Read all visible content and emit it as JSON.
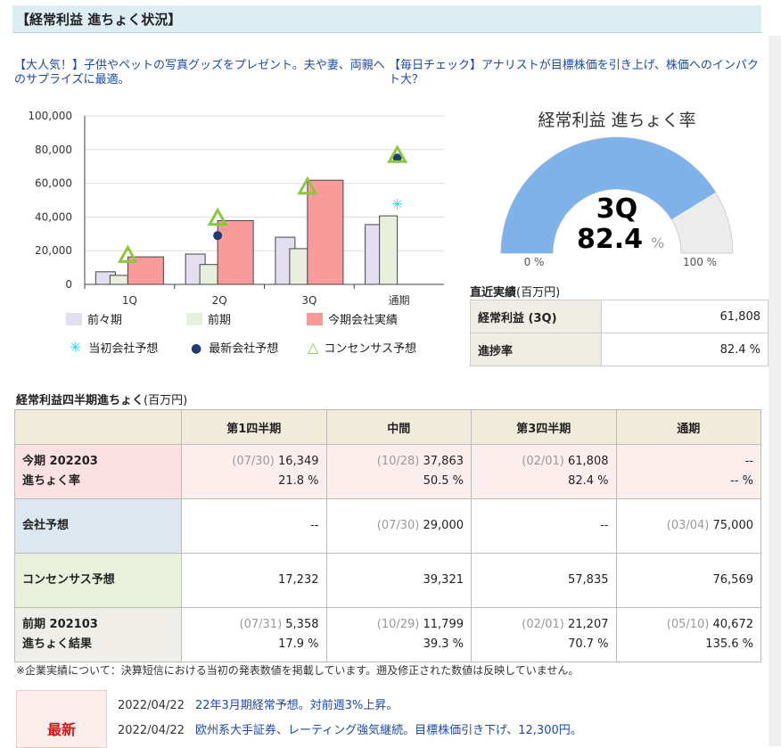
{
  "header": {
    "title": "【経常利益 進ちょく状況】"
  },
  "ads": [
    {
      "text": "【大人気！】子供やペットの写真グッズをプレゼント。夫や妻、両親へのサプライズに最適。"
    },
    {
      "text": "【毎日チェック】アナリストが目標株価を引き上げ、株価へのインパクト大？"
    }
  ],
  "chart_data": {
    "type": "bar",
    "categories": [
      "1Q",
      "2Q",
      "3Q",
      "通期"
    ],
    "ylim": [
      0,
      100000
    ],
    "yticks": [
      "100,000",
      "80,000",
      "60,000",
      "40,000",
      "20,000",
      "0"
    ],
    "series": [
      {
        "name": "前々期",
        "color": "#e4dff0",
        "values": [
          7500,
          18000,
          28000,
          35500
        ]
      },
      {
        "name": "前期",
        "color": "#e9efdd",
        "values": [
          5358,
          11799,
          21207,
          40672
        ]
      },
      {
        "name": "今期会社実績",
        "color": "#fa9b9b",
        "values": [
          16349,
          37863,
          61808,
          null
        ]
      }
    ],
    "markers": [
      {
        "name": "当初会社予想",
        "symbol": "asterisk",
        "color": "#2cd3e6",
        "values": [
          null,
          null,
          null,
          48000
        ]
      },
      {
        "name": "最新会社予想",
        "symbol": "dot",
        "color": "#1f3b70",
        "values": [
          null,
          29000,
          null,
          75000
        ]
      },
      {
        "name": "コンセンサス予想",
        "symbol": "triangle",
        "color": "#8cc63f",
        "values": [
          17232,
          39321,
          57835,
          76569
        ]
      }
    ]
  },
  "gauge": {
    "title": "経常利益 進ちょく率",
    "quarter": "3Q",
    "value": 82.4,
    "value_text": "82.4",
    "unit": "%",
    "min_label": "0 %",
    "max_label": "100 %",
    "fill_color": "#7fb2e8"
  },
  "recent": {
    "title": "直近実績",
    "unit": "(百万円)",
    "rows": [
      {
        "label": "経常利益 (3Q)",
        "value": "61,808"
      },
      {
        "label": "進捗率",
        "value": "82.4 %"
      }
    ]
  },
  "quarter_table": {
    "title": "経常利益四半期進ちょく",
    "unit": "(百万円)",
    "columns": [
      "",
      "第1四半期",
      "中間",
      "第3四半期",
      "通期"
    ],
    "rows": [
      {
        "h1": "今期 202203",
        "h2": "進ちょく率",
        "cells": [
          {
            "d": "(07/30)",
            "v": "16,349",
            "p": "21.8 %"
          },
          {
            "d": "(10/28)",
            "v": "37,863",
            "p": "50.5 %"
          },
          {
            "d": "(02/01)",
            "v": "61,808",
            "p": "82.4 %"
          },
          {
            "d": "",
            "v": "--",
            "p": "-- %"
          }
        ]
      },
      {
        "h1": "会社予想",
        "h2": "",
        "cells": [
          {
            "d": "",
            "v": "--",
            "p": ""
          },
          {
            "d": "(07/30)",
            "v": "29,000",
            "p": ""
          },
          {
            "d": "",
            "v": "--",
            "p": ""
          },
          {
            "d": "(03/04)",
            "v": "75,000",
            "p": ""
          }
        ]
      },
      {
        "h1": "コンセンサス予想",
        "h2": "",
        "cells": [
          {
            "d": "",
            "v": "17,232",
            "p": ""
          },
          {
            "d": "",
            "v": "39,321",
            "p": ""
          },
          {
            "d": "",
            "v": "57,835",
            "p": ""
          },
          {
            "d": "",
            "v": "76,569",
            "p": ""
          }
        ]
      },
      {
        "h1": "前期 202103",
        "h2": "進ちょく結果",
        "cells": [
          {
            "d": "(07/31)",
            "v": "5,358",
            "p": "17.9 %"
          },
          {
            "d": "(10/29)",
            "v": "11,799",
            "p": "39.3 %"
          },
          {
            "d": "(02/01)",
            "v": "21,207",
            "p": "70.7 %"
          },
          {
            "d": "(05/10)",
            "v": "40,672",
            "p": "135.6 %"
          }
        ]
      }
    ]
  },
  "note": "※企業実績について：決算短信における当初の発表数値を掲載しています。遡及修正された数値は反映していません。",
  "latest": {
    "label": "最新",
    "news": [
      {
        "date": "2022/04/22",
        "title": "22年3月期経常予想。対前週3%上昇。"
      },
      {
        "date": "2022/04/22",
        "title": "欧州系大手証券、レーティング強気継続。目標株価引き下げ、12,300円。"
      }
    ]
  }
}
